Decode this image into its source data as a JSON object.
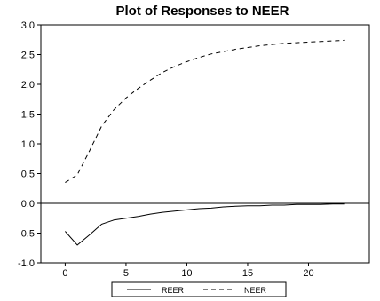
{
  "chart_data": {
    "type": "line",
    "title": "Plot of Responses to NEER",
    "xlabel": "",
    "ylabel": "",
    "xlim": [
      -2,
      25
    ],
    "ylim": [
      -1.0,
      3.0
    ],
    "x_ticks": [
      0,
      5,
      10,
      15,
      20
    ],
    "y_ticks": [
      -1.0,
      -0.5,
      0.0,
      0.5,
      1.0,
      1.5,
      2.0,
      2.5,
      3.0
    ],
    "y_tick_labels": [
      "-1.0",
      "-0.5",
      "0.0",
      "0.5",
      "1.0",
      "1.5",
      "2.0",
      "2.5",
      "3.0"
    ],
    "zero_line": true,
    "grid": false,
    "legend_position": "bottom-center",
    "x": [
      0,
      1,
      2,
      3,
      4,
      5,
      6,
      7,
      8,
      9,
      10,
      11,
      12,
      13,
      14,
      15,
      16,
      17,
      18,
      19,
      20,
      21,
      22,
      23
    ],
    "series": [
      {
        "name": "REER",
        "style": "solid",
        "color": "#000000",
        "values": [
          -0.47,
          -0.7,
          -0.53,
          -0.35,
          -0.28,
          -0.25,
          -0.22,
          -0.18,
          -0.15,
          -0.13,
          -0.11,
          -0.09,
          -0.08,
          -0.06,
          -0.05,
          -0.04,
          -0.04,
          -0.03,
          -0.03,
          -0.02,
          -0.02,
          -0.02,
          -0.01,
          -0.01
        ]
      },
      {
        "name": "NEER",
        "style": "dashed",
        "color": "#000000",
        "values": [
          0.35,
          0.48,
          0.88,
          1.3,
          1.57,
          1.77,
          1.93,
          2.07,
          2.2,
          2.3,
          2.38,
          2.45,
          2.51,
          2.55,
          2.59,
          2.62,
          2.65,
          2.67,
          2.69,
          2.7,
          2.71,
          2.72,
          2.73,
          2.74
        ]
      }
    ]
  }
}
